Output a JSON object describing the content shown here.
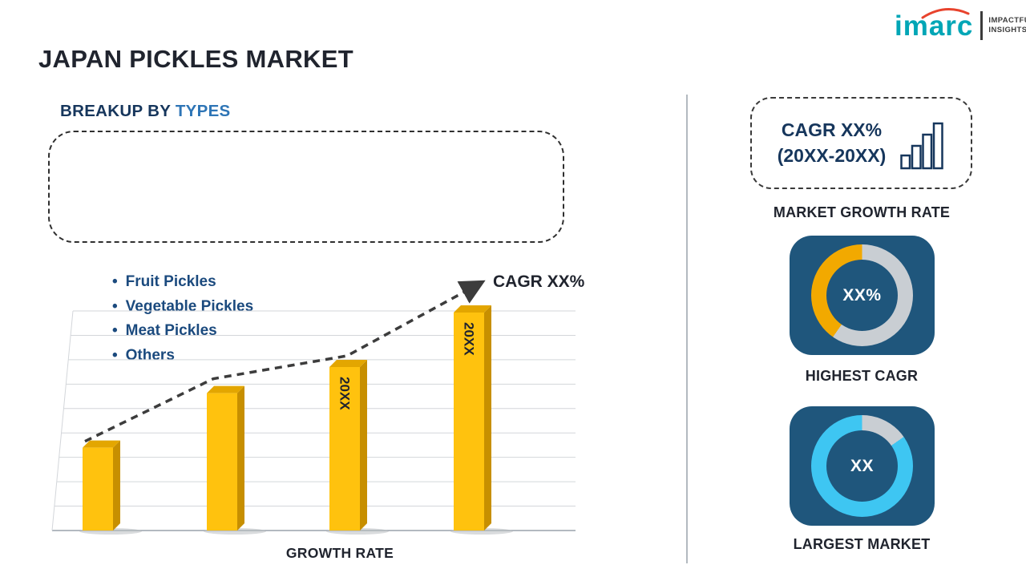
{
  "header": {
    "title": "JAPAN PICKLES MARKET",
    "logo": {
      "brand": "imarc",
      "tagline_line1": "IMPACTFUL",
      "tagline_line2": "INSIGHTS"
    }
  },
  "breakup": {
    "heading_prefix": "BREAKUP BY ",
    "heading_highlight": "TYPES",
    "items": [
      "Fruit Pickles",
      "Vegetable Pickles",
      "Meat Pickles",
      "Others"
    ]
  },
  "chart_data": {
    "type": "bar",
    "title": "",
    "xlabel": "GROWTH RATE",
    "ylabel": "",
    "categories": [
      "",
      "",
      "20XX",
      "20XX"
    ],
    "values": [
      38,
      63,
      75,
      100
    ],
    "ylim": [
      0,
      100
    ],
    "grid": true,
    "legend": "none",
    "trend": {
      "label": "CAGR XX%",
      "style": "dashed-arrow-up"
    }
  },
  "sidebar": {
    "cagr_box": {
      "line1": "CAGR XX%",
      "line2": "(20XX-20XX)"
    },
    "market_growth_label": "MARKET GROWTH RATE",
    "highest_cagr": {
      "value": "XX%",
      "label": "HIGHEST CAGR",
      "ring": {
        "fill_color": "#F2A900",
        "track_color": "#C9CED3",
        "fill_start_deg": 215
      }
    },
    "largest_market": {
      "value": "XX",
      "label": "LARGEST MARKET",
      "ring": {
        "fill_color": "#3EC6F2",
        "track_color": "#C9CED3",
        "fill_start_deg": 55
      }
    }
  },
  "colors": {
    "text_dark": "#20242E",
    "accent_navy": "#16365C",
    "accent_blue": "#2E75B6",
    "list_blue": "#1B4A7E",
    "bar_face": "#FFC20E",
    "bar_side": "#C78F00",
    "bar_top": "#E3A600",
    "trend": "#3C3C3C",
    "grid": "#D3D6DA",
    "axis": "#9AA2AB",
    "card_bg": "#1F567C",
    "divider": "#B3BAC0",
    "logo_teal": "#00A6B6",
    "logo_red": "#E8432D"
  }
}
